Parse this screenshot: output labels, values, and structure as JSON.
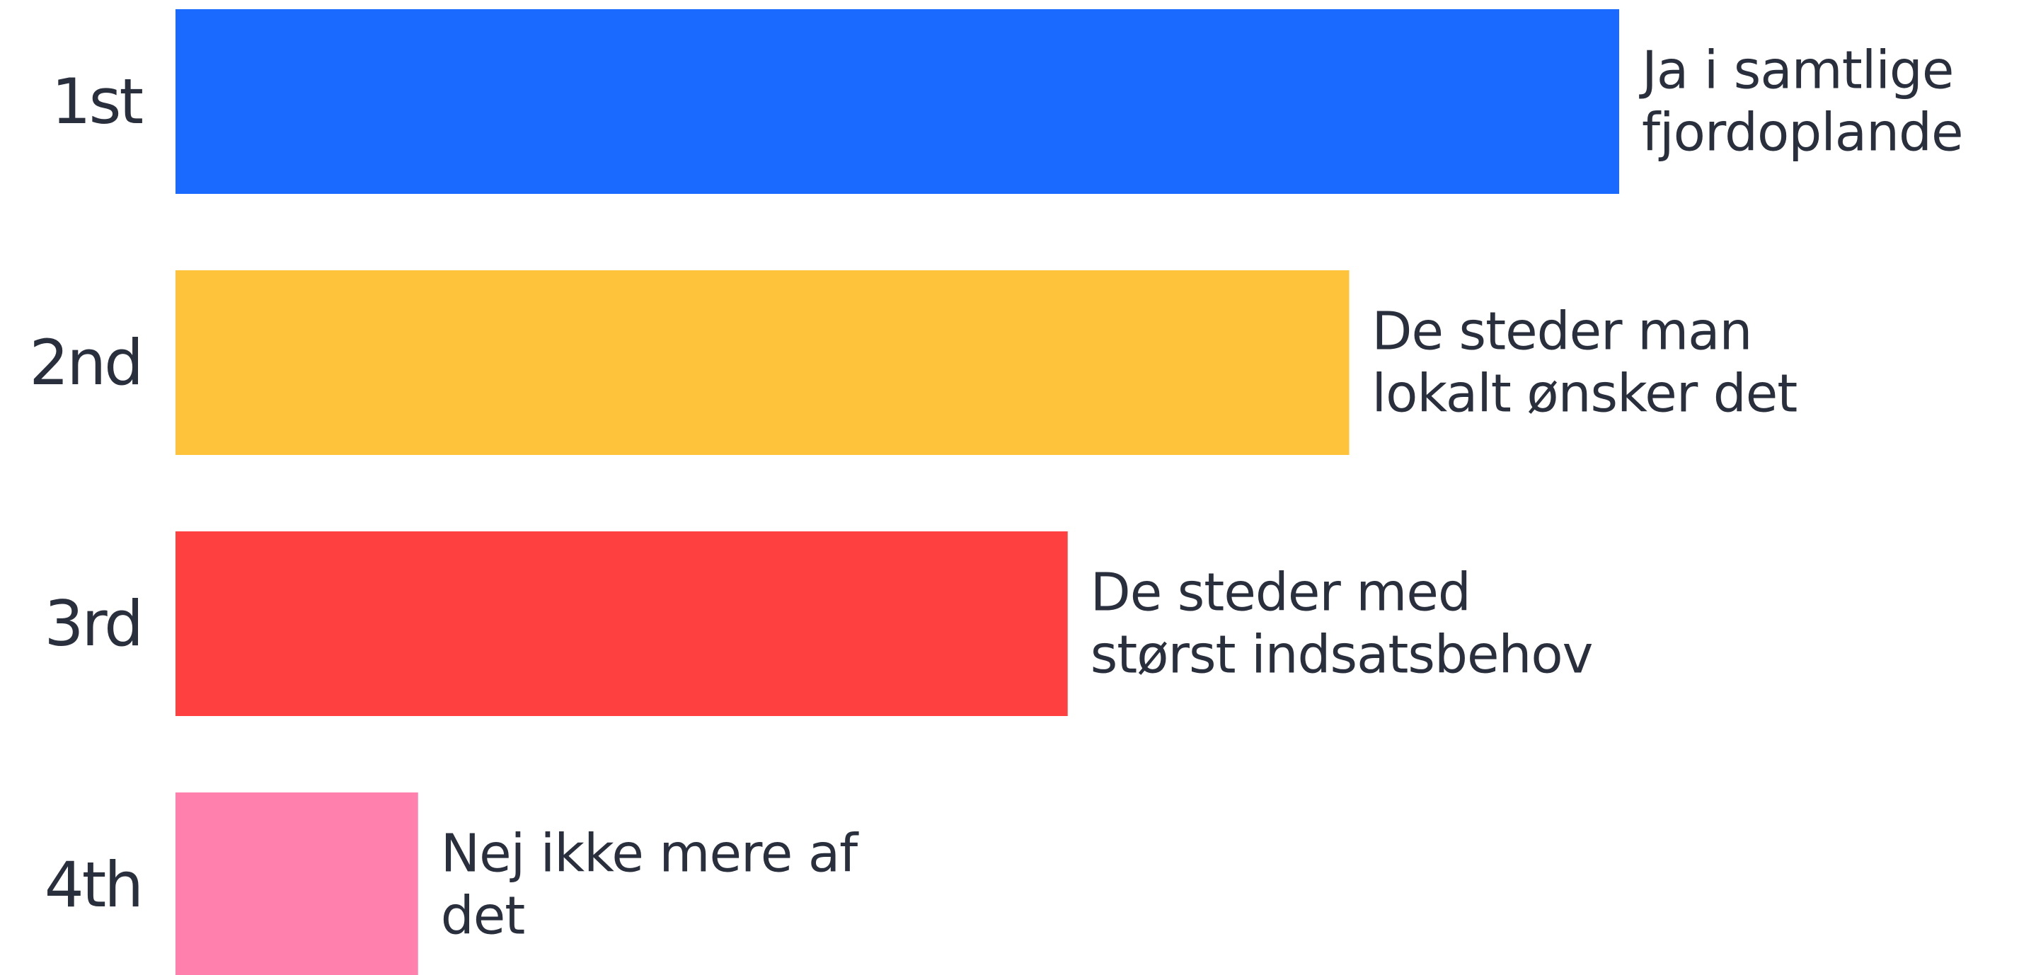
{
  "chart_data": {
    "type": "bar",
    "orientation": "horizontal",
    "categories": [
      "1st",
      "2nd",
      "3rd",
      "4th"
    ],
    "labels": [
      [
        "Ja i samtlige",
        "fjordoplande"
      ],
      [
        "De steder man",
        "lokalt ønsker det"
      ],
      [
        "De steder med",
        "størst indsatsbehov"
      ],
      [
        "Nej ikke mere af",
        "det"
      ]
    ],
    "values": [
      100,
      81.3,
      61.8,
      16.8
    ],
    "colors": [
      "#1a6aff",
      "#ffc23a",
      "#ff4040",
      "#ff80ad"
    ],
    "title": "",
    "xlabel": "",
    "ylabel": "",
    "xlim": [
      0,
      100
    ],
    "grid": false,
    "legend": "none"
  }
}
